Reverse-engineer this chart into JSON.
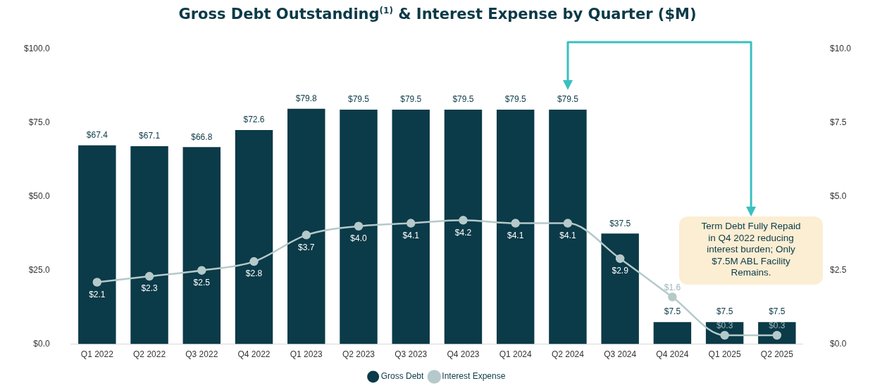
{
  "chart_data": {
    "type": "bar",
    "title": "Gross Debt Outstanding$^{(1)}$ & Interest Expense by Quarter ($M)",
    "categories": [
      "Q1 2022",
      "Q2 2022",
      "Q3 2022",
      "Q4 2022",
      "Q1 2023",
      "Q2 2023",
      "Q3 2023",
      "Q4 2023",
      "Q1 2024",
      "Q2 2024",
      "Q3 2024",
      "Q4 2024",
      "Q1 2025",
      "Q2 2025"
    ],
    "series": [
      {
        "name": "Gross Debt",
        "color": "#0b3a48",
        "values": [
          67.4,
          67.1,
          66.8,
          72.6,
          79.8,
          79.5,
          79.5,
          79.5,
          79.5,
          79.5,
          37.5,
          7.5,
          7.5,
          7.5
        ],
        "value_labels": [
          "$67.4",
          "$67.1",
          "$66.8",
          "$72.6",
          "$79.8",
          "$79.5",
          "$79.5",
          "$79.5",
          "$79.5",
          "$79.5",
          "$37.5",
          "$7.5",
          "$7.5",
          "$7.5"
        ]
      },
      {
        "name": "Interest Expense",
        "type": "line",
        "axis": "y2",
        "color": "#b5c9ca",
        "values": [
          2.1,
          2.3,
          2.5,
          2.8,
          3.7,
          4.0,
          4.1,
          4.2,
          4.1,
          4.1,
          2.9,
          1.6,
          0.3,
          0.3
        ],
        "value_labels": [
          "$2.1",
          "$2.3",
          "$2.5",
          "$2.8",
          "$3.7",
          "$4.0",
          "$4.1",
          "$4.2",
          "$4.1",
          "$4.1",
          "$2.9",
          "$1.6",
          "$0.3",
          "$0.3"
        ]
      }
    ],
    "ylim": [
      0,
      100
    ],
    "yticks": [
      {
        "value": 0,
        "label": "$0.0"
      },
      {
        "value": 25,
        "label": "$25.0"
      },
      {
        "value": 50,
        "label": "$50.0"
      },
      {
        "value": 75,
        "label": "$75.0"
      },
      {
        "value": 100,
        "label": "$100.0"
      }
    ],
    "y2lim": [
      0,
      10
    ],
    "y2ticks": [
      {
        "value": 0,
        "label": "$0.0"
      },
      {
        "value": 2.5,
        "label": "$2.5"
      },
      {
        "value": 5,
        "label": "$5.0"
      },
      {
        "value": 7.5,
        "label": "$7.5"
      },
      {
        "value": 10,
        "label": "$10.0"
      }
    ],
    "annotations": [
      "Term Debt Fully Repaid in Q4 2022 reducing interest burden; Only $7.5M ABL Facility Remains."
    ],
    "legend": "bottom",
    "grid": false,
    "marker": "circle"
  }
}
